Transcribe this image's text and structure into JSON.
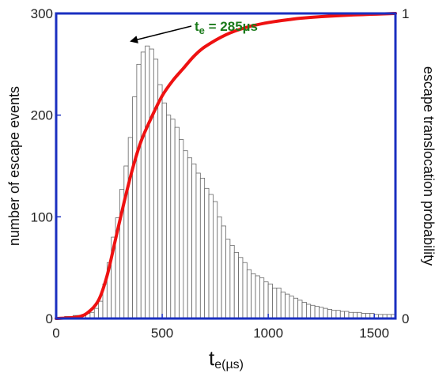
{
  "chart_data": {
    "type": "bar",
    "title": "",
    "colors": {
      "frame": "#1a2fc0",
      "bars_fill": "#ffffff",
      "bars_edge": "#666666",
      "curve": "#ee1111",
      "annotation": "#1a7a1a"
    },
    "x_axis": {
      "label_main": "t",
      "label_sub": "e(µs)",
      "range": [
        0,
        1600
      ],
      "ticks": [
        "0",
        "500",
        "1000",
        "1500"
      ],
      "tick_values": [
        0,
        500,
        1000,
        1500
      ]
    },
    "y_axis_left": {
      "label": "number of escape events",
      "range": [
        0,
        300
      ],
      "ticks": [
        "0",
        "100",
        "200",
        "300"
      ],
      "tick_values": [
        0,
        100,
        200,
        300
      ]
    },
    "y_axis_right": {
      "label": "escape translocation probability",
      "range": [
        0,
        1
      ],
      "ticks": [
        "0",
        "1"
      ],
      "tick_values": [
        0,
        1
      ]
    },
    "annotation": {
      "label_main": "t",
      "label_sub": "e",
      "label_rest": " = 285µs",
      "x": 330,
      "y": 268
    },
    "histogram": {
      "name": "number of escape events",
      "bin_width": 20,
      "x_start": 0,
      "values": [
        0,
        1,
        2,
        2,
        3,
        3,
        4,
        5,
        6,
        10,
        17,
        34,
        55,
        80,
        99,
        127,
        150,
        178,
        218,
        250,
        262,
        268,
        265,
        255,
        230,
        212,
        200,
        196,
        188,
        176,
        165,
        158,
        152,
        143,
        138,
        128,
        122,
        115,
        100,
        91,
        78,
        72,
        65,
        60,
        55,
        48,
        44,
        42,
        40,
        36,
        34,
        30,
        30,
        26,
        24,
        22,
        20,
        18,
        16,
        14,
        13,
        12,
        11,
        10,
        9,
        8,
        8,
        7,
        7,
        6,
        6,
        6,
        5,
        5,
        5,
        4,
        4,
        4,
        4,
        4,
        4,
        4
      ]
    },
    "curve": {
      "name": "escape translocation probability",
      "x": [
        0,
        100,
        150,
        200,
        240,
        280,
        320,
        360,
        400,
        450,
        500,
        550,
        600,
        650,
        700,
        800,
        900,
        1000,
        1100,
        1200,
        1400,
        1600
      ],
      "y": [
        0,
        0.005,
        0.02,
        0.06,
        0.14,
        0.26,
        0.38,
        0.49,
        0.58,
        0.66,
        0.73,
        0.78,
        0.82,
        0.86,
        0.89,
        0.93,
        0.955,
        0.97,
        0.98,
        0.987,
        0.995,
        1.0
      ]
    }
  }
}
